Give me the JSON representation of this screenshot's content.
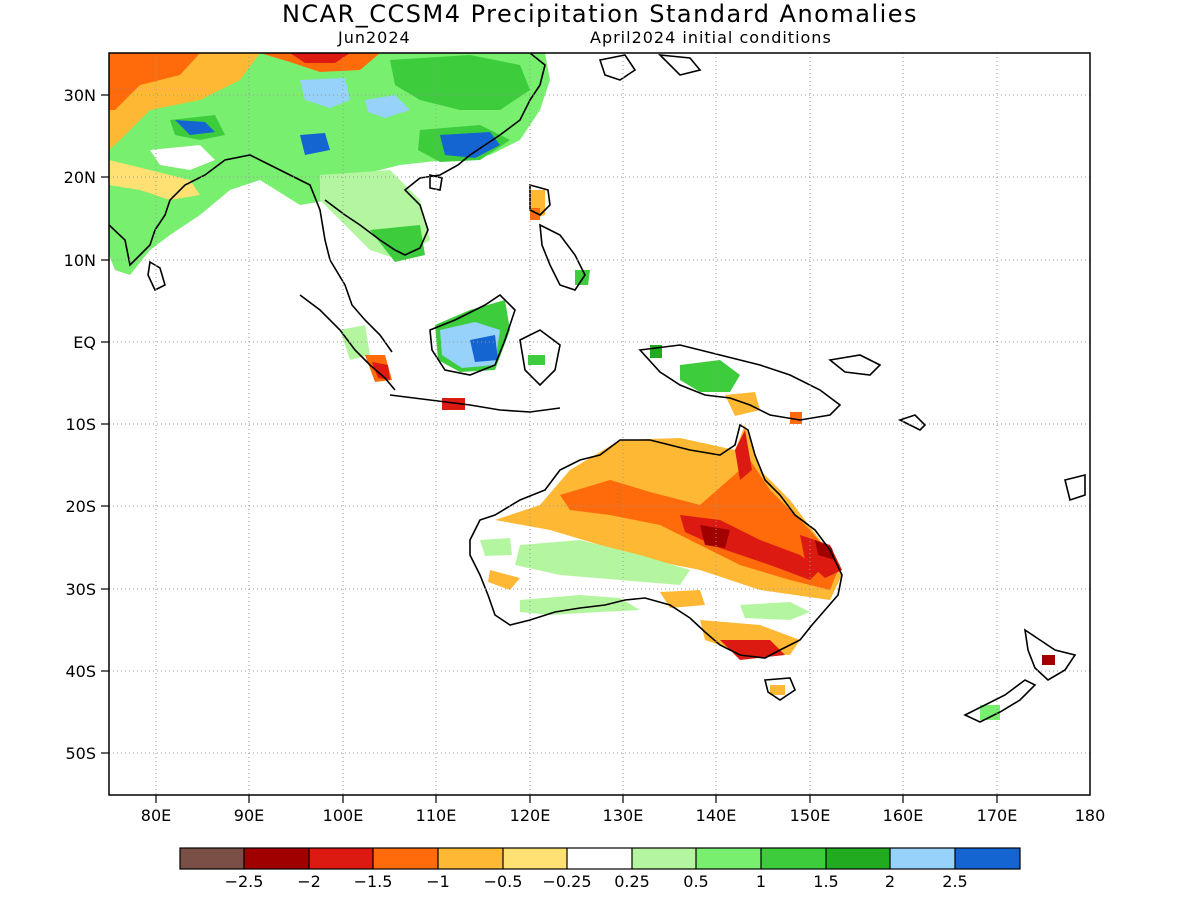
{
  "title": "NCAR_CCSM4 Precipitation Standard Anomalies",
  "subtitle_left": "Jun2024",
  "subtitle_right": "April2024 initial conditions",
  "map": {
    "lon_range": [
      75,
      180
    ],
    "lat_range": [
      -55,
      35
    ],
    "x_ticks": [
      "80E",
      "90E",
      "100E",
      "110E",
      "120E",
      "130E",
      "140E",
      "150E",
      "160E",
      "170E",
      "180"
    ],
    "y_ticks": [
      "30N",
      "20N",
      "10N",
      "EQ",
      "10S",
      "20S",
      "30S",
      "40S",
      "50S"
    ],
    "grid": "dotted"
  },
  "colorbar": {
    "colors": [
      "#7a4f45",
      "#a00000",
      "#dd1a12",
      "#ff6a0a",
      "#ffb833",
      "#ffe173",
      "#ffffff",
      "#b4f6a0",
      "#78ef6e",
      "#3ccc3c",
      "#20ab20",
      "#96d2fa",
      "#1464d2"
    ],
    "labels": [
      "−2.5",
      "−2",
      "−1.5",
      "−1",
      "−0.5",
      "−0.25",
      "0.25",
      "0.5",
      "1",
      "1.5",
      "2",
      "2.5"
    ]
  }
}
